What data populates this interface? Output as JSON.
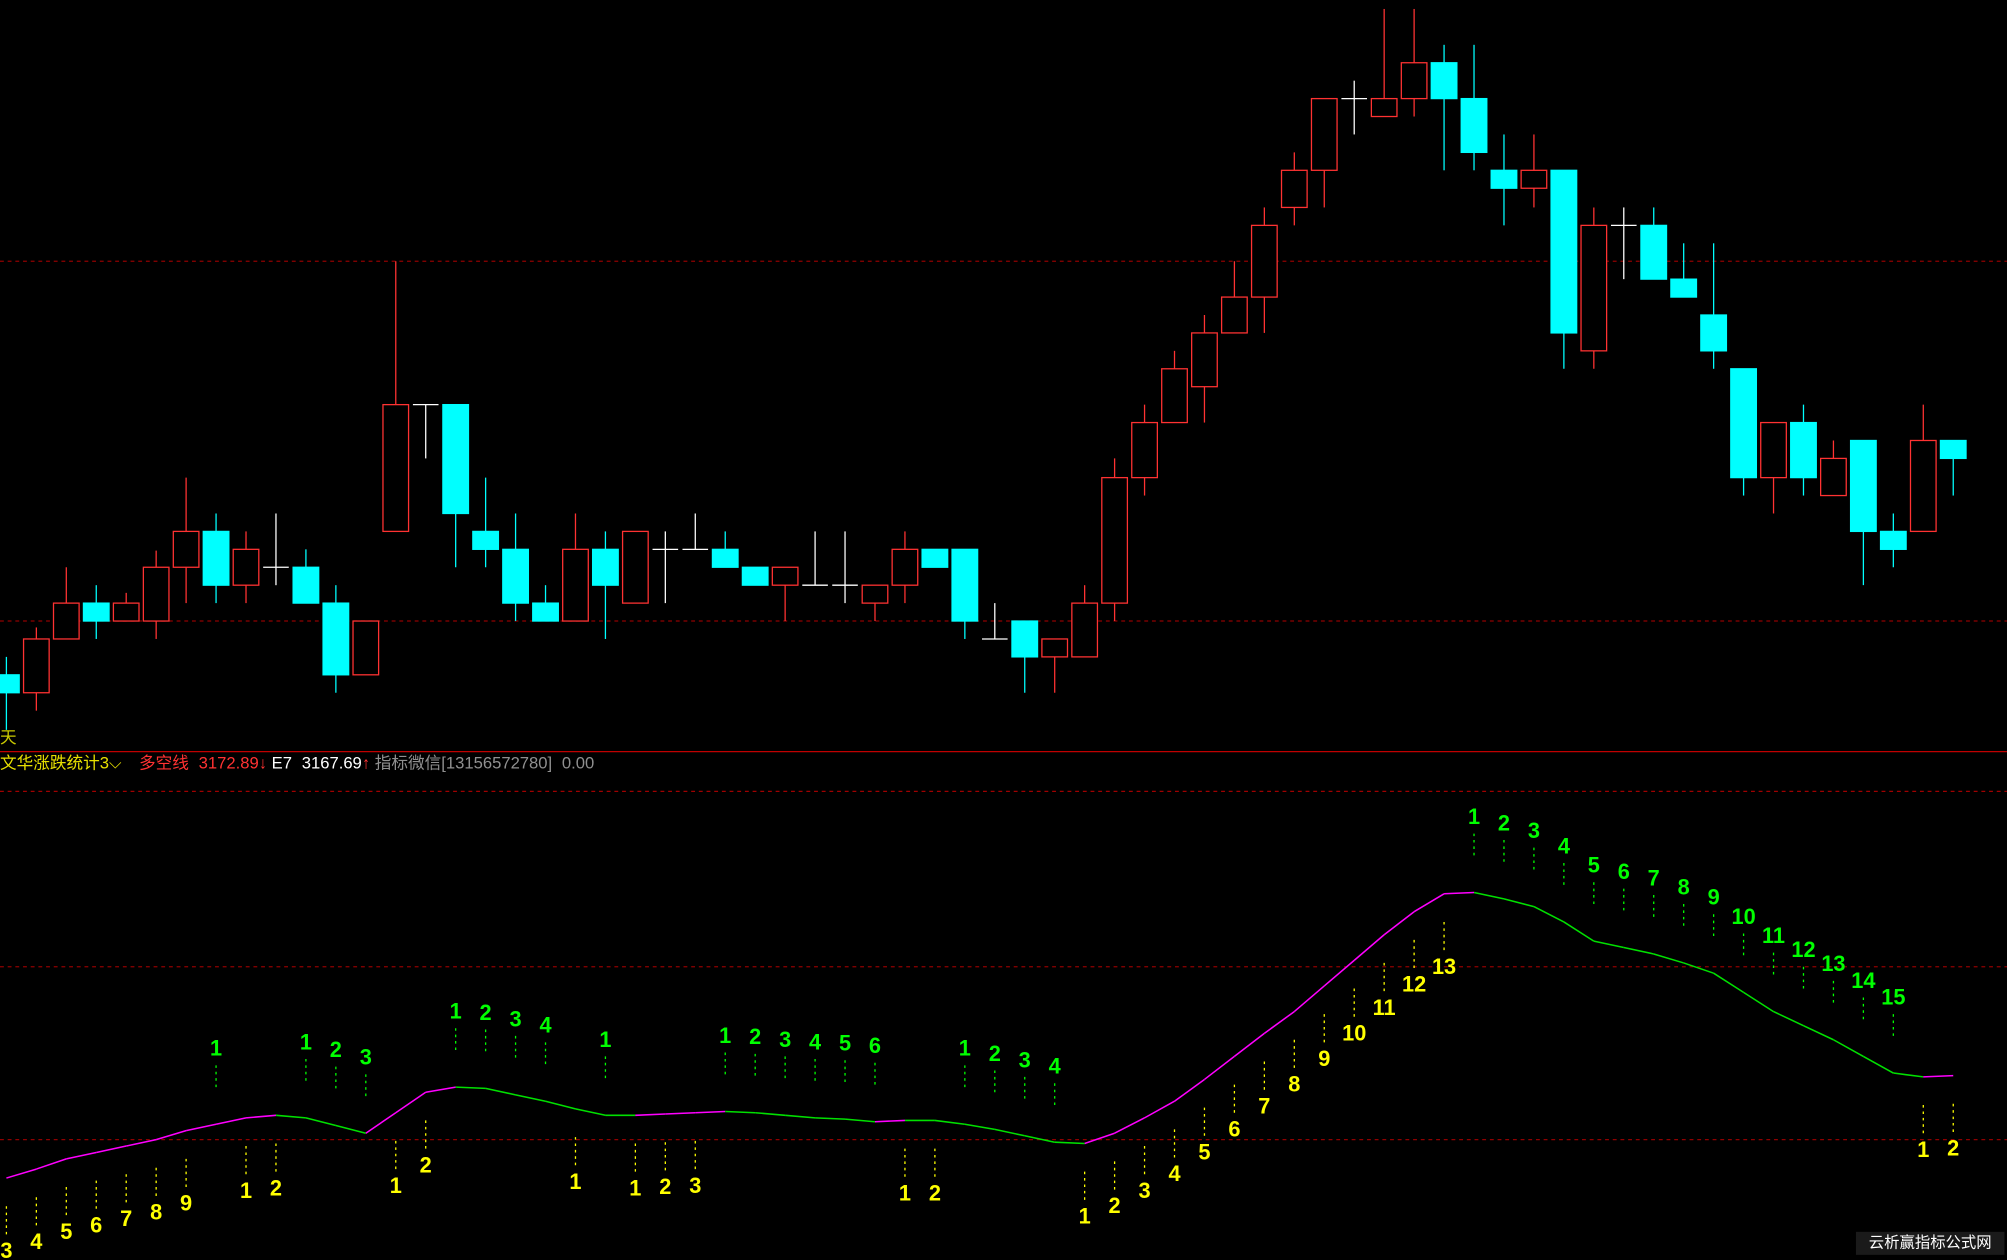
{
  "pane_label": "天",
  "legend": {
    "indicator": "文华涨跌统计3",
    "line1_name": "多空线",
    "line1_value": "3172.89",
    "line1_arrow": "↓",
    "line2_name": "E7",
    "line2_value": "3167.69",
    "line2_arrow": "↑",
    "contact": "指标微信[13156572780]",
    "extra": "0.00"
  },
  "watermark": "云析赢指标公式网",
  "chart_data": [
    {
      "type": "candlestick",
      "up_color": "#ff3232",
      "down_color": "#00ffff",
      "flat_color": "#ffffff",
      "ylim": [
        0,
        585
      ],
      "grid_lines": [
        381,
        100
      ],
      "open": [
        58,
        44,
        86,
        114,
        100,
        100,
        142,
        170,
        128,
        142,
        142,
        114,
        58,
        170,
        269,
        269,
        170,
        156,
        114,
        100,
        156,
        114,
        156,
        156,
        156,
        142,
        128,
        128,
        128,
        114,
        128,
        156,
        156,
        86,
        100,
        72,
        72,
        114,
        212,
        255,
        283,
        325,
        353,
        423,
        452,
        508,
        494,
        508,
        536,
        508,
        452,
        438,
        452,
        311,
        409,
        409,
        367,
        339,
        297,
        212,
        255,
        198,
        241,
        170,
        170,
        241
      ],
      "high": [
        72,
        95,
        142,
        128,
        122,
        155,
        212,
        184,
        170,
        184,
        156,
        128,
        100,
        381,
        269,
        269,
        212,
        184,
        128,
        184,
        170,
        170,
        170,
        184,
        170,
        142,
        142,
        170,
        170,
        128,
        170,
        156,
        156,
        114,
        100,
        86,
        128,
        227,
        269,
        311,
        339,
        381,
        423,
        466,
        508,
        522,
        578,
        578,
        550,
        550,
        480,
        480,
        452,
        423,
        423,
        423,
        395,
        395,
        297,
        255,
        269,
        241,
        241,
        184,
        269,
        241
      ],
      "low": [
        15,
        30,
        86,
        86,
        100,
        86,
        114,
        114,
        114,
        128,
        114,
        44,
        58,
        170,
        227,
        142,
        142,
        100,
        100,
        100,
        86,
        114,
        114,
        156,
        142,
        128,
        100,
        128,
        114,
        100,
        114,
        142,
        86,
        86,
        44,
        44,
        72,
        100,
        198,
        255,
        255,
        325,
        325,
        409,
        423,
        480,
        494,
        494,
        452,
        452,
        409,
        423,
        297,
        297,
        367,
        367,
        353,
        297,
        198,
        184,
        198,
        198,
        128,
        142,
        170,
        198
      ],
      "close": [
        44,
        86,
        114,
        100,
        114,
        142,
        170,
        128,
        156,
        142,
        114,
        58,
        100,
        269,
        269,
        184,
        156,
        114,
        100,
        156,
        128,
        170,
        156,
        156,
        142,
        128,
        142,
        128,
        128,
        128,
        156,
        142,
        100,
        86,
        72,
        86,
        114,
        212,
        255,
        297,
        325,
        353,
        409,
        452,
        508,
        508,
        508,
        536,
        508,
        466,
        438,
        452,
        325,
        409,
        409,
        367,
        353,
        311,
        212,
        255,
        212,
        227,
        170,
        156,
        241,
        227
      ]
    },
    {
      "type": "line",
      "rising_color": "#ff00ff",
      "falling_color": "#00e000",
      "ylim": [
        0,
        366
      ],
      "grid_lines": [
        229,
        94
      ],
      "values": [
        64,
        71,
        79,
        84,
        89,
        94,
        101,
        106,
        111,
        113,
        111,
        105,
        99,
        115,
        131,
        135,
        134,
        129,
        124,
        118,
        113,
        113,
        114,
        115,
        116,
        115,
        113,
        111,
        110,
        108,
        109,
        109,
        106,
        102,
        97,
        92,
        91,
        99,
        111,
        124,
        141,
        159,
        177,
        194,
        214,
        234,
        254,
        272,
        286,
        287,
        282,
        276,
        264,
        249,
        244,
        239,
        232,
        224,
        209,
        194,
        183,
        172,
        159,
        146,
        143,
        144
      ],
      "series": [
        {
          "color": "#00ff00",
          "position": "above",
          "values": [
            null,
            null,
            null,
            null,
            null,
            null,
            null,
            1,
            null,
            null,
            1,
            2,
            3,
            null,
            null,
            1,
            2,
            3,
            4,
            null,
            1,
            null,
            null,
            null,
            1,
            2,
            3,
            4,
            5,
            6,
            null,
            null,
            1,
            2,
            3,
            4,
            null,
            null,
            null,
            null,
            null,
            null,
            null,
            null,
            null,
            null,
            null,
            null,
            null,
            1,
            2,
            3,
            4,
            5,
            6,
            7,
            8,
            9,
            10,
            11,
            12,
            13,
            14,
            15,
            null,
            null
          ]
        },
        {
          "color": "#ffff00",
          "position": "below",
          "values": [
            3,
            4,
            5,
            6,
            7,
            8,
            9,
            null,
            1,
            2,
            null,
            null,
            null,
            1,
            2,
            null,
            null,
            null,
            null,
            1,
            null,
            1,
            2,
            3,
            null,
            null,
            null,
            null,
            null,
            null,
            1,
            2,
            null,
            null,
            null,
            null,
            1,
            2,
            3,
            4,
            5,
            6,
            7,
            8,
            9,
            10,
            11,
            12,
            13,
            null,
            null,
            null,
            null,
            null,
            null,
            null,
            null,
            null,
            null,
            null,
            null,
            null,
            null,
            null,
            1,
            2
          ]
        }
      ]
    }
  ]
}
